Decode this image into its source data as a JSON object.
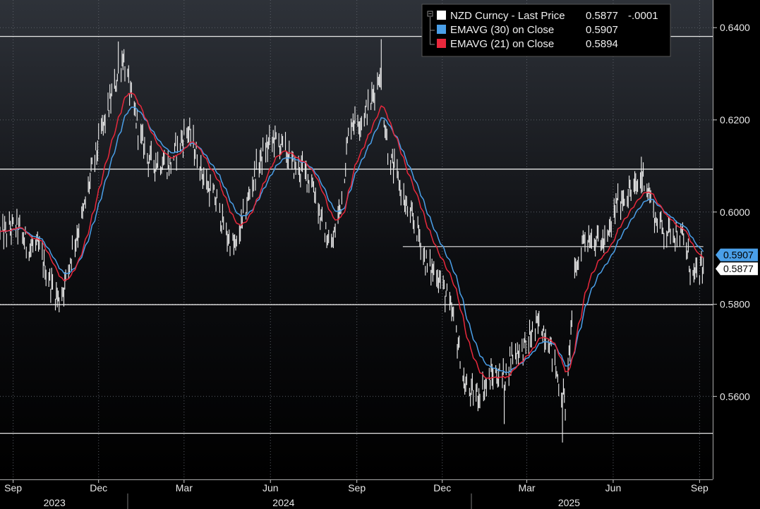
{
  "chart_data": {
    "type": "line",
    "title": "",
    "xlabel": "",
    "ylabel": "",
    "ylim": [
      0.542,
      0.646
    ],
    "y_ticks": [
      "0.6400",
      "0.6200",
      "0.6000",
      "0.5800",
      "0.5600"
    ],
    "x_tick_labels": [
      {
        "label": "Sep",
        "date": "2023-09-01"
      },
      {
        "label": "Dec",
        "date": "2023-12-01"
      },
      {
        "label": "Mar",
        "date": "2024-03-01"
      },
      {
        "label": "Jun",
        "date": "2024-06-01"
      },
      {
        "label": "Sep",
        "date": "2024-09-01"
      },
      {
        "label": "Dec",
        "date": "2024-12-01"
      },
      {
        "label": "Mar",
        "date": "2025-03-01"
      },
      {
        "label": "Jun",
        "date": "2025-06-01"
      },
      {
        "label": "Sep",
        "date": "2025-09-01"
      }
    ],
    "year_labels": [
      {
        "label": "2023",
        "date": "2023-10-15"
      },
      {
        "label": "2024",
        "date": "2024-06-15"
      },
      {
        "label": "2025",
        "date": "2025-04-15"
      }
    ],
    "horizontal_lines": [
      {
        "y": 0.6381
      },
      {
        "y": 0.6093
      },
      {
        "y": 0.5799
      },
      {
        "y": 0.552
      }
    ],
    "segment_line": {
      "y": 0.5925,
      "x_start": "2024-10-20",
      "x_end": "2025-09-05"
    },
    "legend": {
      "position": "top-right",
      "entries": [
        {
          "name": "NZD Curncy - Last Price",
          "value": "0.5877",
          "change": "-.0001",
          "color": "#ffffff"
        },
        {
          "name": "EMAVG (30)  on Close",
          "value": "0.5907",
          "color": "#4a9fe8"
        },
        {
          "name": "EMAVG (21)  on Close",
          "value": "0.5894",
          "color": "#e8283c"
        }
      ]
    },
    "last_value_labels": [
      {
        "value": "0.5907",
        "series": "EMAVG (30)",
        "bg": "#4a9fe8",
        "fg": "#000000"
      },
      {
        "value": "0.5877",
        "series": "NZD Curncy",
        "bg": "#ffffff",
        "fg": "#000000"
      }
    ],
    "x_range": [
      "2023-08-18",
      "2025-09-15"
    ],
    "price_anchors": [
      [
        "2023-08-18",
        0.595
      ],
      [
        "2023-09-05",
        0.597
      ],
      [
        "2023-09-15",
        0.593
      ],
      [
        "2023-09-28",
        0.592
      ],
      [
        "2023-10-10",
        0.585
      ],
      [
        "2023-10-20",
        0.581
      ],
      [
        "2023-10-27",
        0.585
      ],
      [
        "2023-11-03",
        0.592
      ],
      [
        "2023-11-15",
        0.6
      ],
      [
        "2023-11-25",
        0.61
      ],
      [
        "2023-12-05",
        0.618
      ],
      [
        "2023-12-15",
        0.625
      ],
      [
        "2023-12-27",
        0.634
      ],
      [
        "2024-01-05",
        0.624
      ],
      [
        "2024-01-15",
        0.616
      ],
      [
        "2024-01-25",
        0.611
      ],
      [
        "2024-02-05",
        0.611
      ],
      [
        "2024-02-15",
        0.61
      ],
      [
        "2024-02-25",
        0.615
      ],
      [
        "2024-03-05",
        0.618
      ],
      [
        "2024-03-15",
        0.612
      ],
      [
        "2024-03-25",
        0.606
      ],
      [
        "2024-04-05",
        0.602
      ],
      [
        "2024-04-15",
        0.595
      ],
      [
        "2024-04-25",
        0.592
      ],
      [
        "2024-05-05",
        0.6
      ],
      [
        "2024-05-15",
        0.608
      ],
      [
        "2024-05-25",
        0.613
      ],
      [
        "2024-06-05",
        0.616
      ],
      [
        "2024-06-15",
        0.614
      ],
      [
        "2024-06-25",
        0.61
      ],
      [
        "2024-07-05",
        0.609
      ],
      [
        "2024-07-15",
        0.607
      ],
      [
        "2024-07-25",
        0.598
      ],
      [
        "2024-08-05",
        0.592
      ],
      [
        "2024-08-15",
        0.602
      ],
      [
        "2024-08-25",
        0.62
      ],
      [
        "2024-09-05",
        0.62
      ],
      [
        "2024-09-15",
        0.623
      ],
      [
        "2024-09-25",
        0.63
      ],
      [
        "2024-10-05",
        0.612
      ],
      [
        "2024-10-15",
        0.607
      ],
      [
        "2024-10-25",
        0.6
      ],
      [
        "2024-11-05",
        0.596
      ],
      [
        "2024-11-15",
        0.588
      ],
      [
        "2024-11-25",
        0.587
      ],
      [
        "2024-12-05",
        0.582
      ],
      [
        "2024-12-15",
        0.575
      ],
      [
        "2024-12-25",
        0.562
      ],
      [
        "2025-01-05",
        0.56
      ],
      [
        "2025-01-15",
        0.562
      ],
      [
        "2025-01-25",
        0.565
      ],
      [
        "2025-02-05",
        0.564
      ],
      [
        "2025-02-15",
        0.57
      ],
      [
        "2025-02-25",
        0.57
      ],
      [
        "2025-03-05",
        0.573
      ],
      [
        "2025-03-15",
        0.576
      ],
      [
        "2025-03-25",
        0.572
      ],
      [
        "2025-04-05",
        0.562
      ],
      [
        "2025-04-12",
        0.558
      ],
      [
        "2025-04-20",
        0.585
      ],
      [
        "2025-05-01",
        0.595
      ],
      [
        "2025-05-15",
        0.594
      ],
      [
        "2025-05-25",
        0.593
      ],
      [
        "2025-06-05",
        0.602
      ],
      [
        "2025-06-15",
        0.604
      ],
      [
        "2025-06-25",
        0.605
      ],
      [
        "2025-07-05",
        0.608
      ],
      [
        "2025-07-15",
        0.599
      ],
      [
        "2025-07-25",
        0.596
      ],
      [
        "2025-08-05",
        0.596
      ],
      [
        "2025-08-15",
        0.594
      ],
      [
        "2025-08-25",
        0.586
      ],
      [
        "2025-09-05",
        0.5877
      ]
    ],
    "spikes": [
      [
        "2023-12-23",
        0.637
      ],
      [
        "2024-01-02",
        0.628
      ],
      [
        "2024-07-22",
        0.602
      ],
      [
        "2024-09-28",
        0.6375
      ],
      [
        "2024-12-20",
        0.566
      ],
      [
        "2025-02-05",
        0.554
      ],
      [
        "2025-04-08",
        0.55
      ],
      [
        "2025-07-01",
        0.612
      ]
    ]
  }
}
